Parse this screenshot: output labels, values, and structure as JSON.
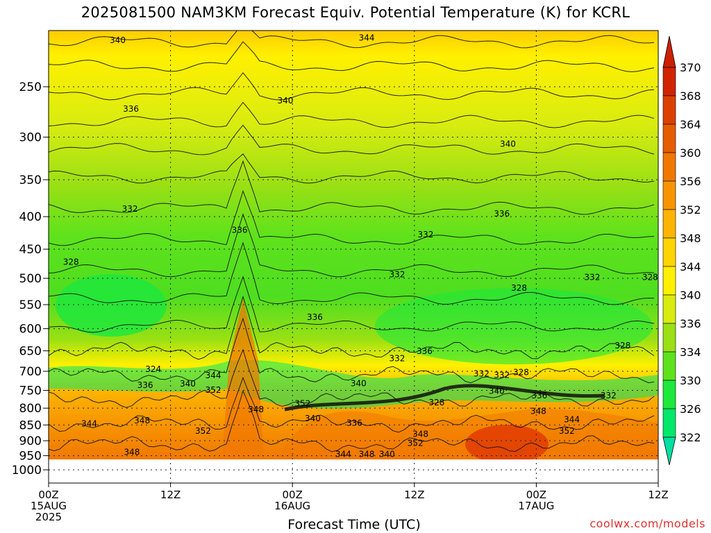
{
  "title": "2025081500 NAM3KM Forecast Equiv. Potential Temperature (K) for KCRL",
  "chart_data": {
    "type": "heatmap",
    "title": "2025081500 NAM3KM Forecast Equiv. Potential Temperature (K) for KCRL",
    "xlabel": "Forecast Time (UTC)",
    "ylabel": "",
    "y_scale": "log-pressure",
    "y_ticks": [
      250,
      300,
      350,
      400,
      450,
      500,
      550,
      600,
      650,
      700,
      750,
      800,
      850,
      900,
      950,
      1000
    ],
    "ylim": [
      1000,
      200
    ],
    "x_range_hours": [
      0,
      60
    ],
    "x_ticks": [
      {
        "hour": 0,
        "lines": [
          "00Z",
          "15AUG",
          "2025"
        ]
      },
      {
        "hour": 12,
        "lines": [
          "12Z"
        ]
      },
      {
        "hour": 24,
        "lines": [
          "00Z",
          "16AUG"
        ]
      },
      {
        "hour": 36,
        "lines": [
          "12Z"
        ]
      },
      {
        "hour": 48,
        "lines": [
          "00Z",
          "17AUG"
        ]
      },
      {
        "hour": 60,
        "lines": [
          "12Z"
        ]
      }
    ],
    "grid": true,
    "ground_below_hPa": 960,
    "colorbar": {
      "levels": [
        322,
        326,
        330,
        334,
        336,
        340,
        344,
        348,
        352,
        356,
        360,
        364,
        368,
        370
      ],
      "colors": [
        "#00e86a",
        "#1ee83c",
        "#5ee21c",
        "#9ae014",
        "#d8ec10",
        "#fff000",
        "#ffd400",
        "#fcb400",
        "#f79400",
        "#f07800",
        "#e65c00",
        "#dc4000",
        "#d02400"
      ],
      "extend": "both"
    },
    "contour_labels": [
      {
        "t": 6.8,
        "p": 213,
        "v": "340"
      },
      {
        "t": 31.3,
        "p": 211,
        "v": "344"
      },
      {
        "t": 23.3,
        "p": 265,
        "v": "340"
      },
      {
        "t": 8.1,
        "p": 273,
        "v": "336"
      },
      {
        "t": 45.2,
        "p": 310,
        "v": "340"
      },
      {
        "t": 8.0,
        "p": 392,
        "v": "332"
      },
      {
        "t": 18.8,
        "p": 423,
        "v": "336"
      },
      {
        "t": 44.6,
        "p": 399,
        "v": "336"
      },
      {
        "t": 37.1,
        "p": 430,
        "v": "332"
      },
      {
        "t": 2.2,
        "p": 475,
        "v": "328"
      },
      {
        "t": 34.3,
        "p": 497,
        "v": "332"
      },
      {
        "t": 46.3,
        "p": 522,
        "v": "328"
      },
      {
        "t": 53.5,
        "p": 502,
        "v": "332"
      },
      {
        "t": 59.2,
        "p": 502,
        "v": "328"
      },
      {
        "t": 26.2,
        "p": 580,
        "v": "336"
      },
      {
        "t": 37.0,
        "p": 656,
        "v": "336"
      },
      {
        "t": 34.3,
        "p": 673,
        "v": "332"
      },
      {
        "t": 56.5,
        "p": 643,
        "v": "328"
      },
      {
        "t": 10.3,
        "p": 700,
        "v": "324"
      },
      {
        "t": 9.5,
        "p": 742,
        "v": "336"
      },
      {
        "t": 13.7,
        "p": 738,
        "v": "340"
      },
      {
        "t": 16.2,
        "p": 716,
        "v": "344"
      },
      {
        "t": 16.2,
        "p": 755,
        "v": "352"
      },
      {
        "t": 30.5,
        "p": 737,
        "v": "340"
      },
      {
        "t": 42.6,
        "p": 712,
        "v": "332"
      },
      {
        "t": 44.6,
        "p": 715,
        "v": "332"
      },
      {
        "t": 46.5,
        "p": 708,
        "v": "328"
      },
      {
        "t": 44.1,
        "p": 758,
        "v": "340"
      },
      {
        "t": 48.3,
        "p": 770,
        "v": "336"
      },
      {
        "t": 38.2,
        "p": 790,
        "v": "328"
      },
      {
        "t": 55.1,
        "p": 770,
        "v": "332"
      },
      {
        "t": 20.4,
        "p": 810,
        "v": "348"
      },
      {
        "t": 25.0,
        "p": 793,
        "v": "352"
      },
      {
        "t": 26.0,
        "p": 837,
        "v": "340"
      },
      {
        "t": 30.1,
        "p": 850,
        "v": "336"
      },
      {
        "t": 48.2,
        "p": 815,
        "v": "348"
      },
      {
        "t": 51.5,
        "p": 840,
        "v": "344"
      },
      {
        "t": 51.0,
        "p": 875,
        "v": "352"
      },
      {
        "t": 4.0,
        "p": 853,
        "v": "344"
      },
      {
        "t": 9.2,
        "p": 843,
        "v": "348"
      },
      {
        "t": 15.2,
        "p": 875,
        "v": "352"
      },
      {
        "t": 36.6,
        "p": 885,
        "v": "348"
      },
      {
        "t": 36.1,
        "p": 915,
        "v": "352"
      },
      {
        "t": 8.2,
        "p": 945,
        "v": "348"
      },
      {
        "t": 29.0,
        "p": 952,
        "v": "344"
      },
      {
        "t": 31.3,
        "p": 952,
        "v": "348"
      },
      {
        "t": 33.3,
        "p": 952,
        "v": "340"
      }
    ]
  },
  "x_axis_title": "Forecast Time (UTC)",
  "credit": "coolwx.com/models"
}
